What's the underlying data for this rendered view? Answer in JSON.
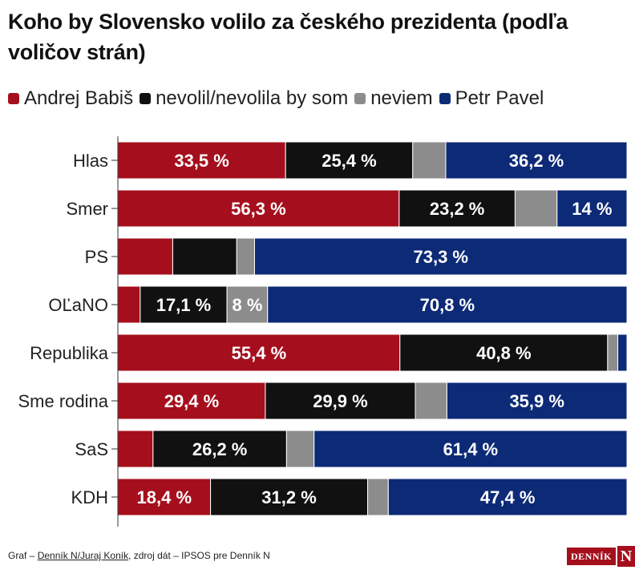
{
  "title": "Koho by Slovensko volilo za českého prezidenta (podľa voličov strán)",
  "legend": [
    {
      "label": "Andrej Babiš",
      "color": "#a50f1d"
    },
    {
      "label": "nevolil/nevolila by som",
      "color": "#111111"
    },
    {
      "label": "neviem",
      "color": "#8c8c8c"
    },
    {
      "label": "Petr Pavel",
      "color": "#0d2a77"
    }
  ],
  "chart_data": {
    "type": "bar",
    "orientation": "horizontal",
    "stacked": true,
    "percent": true,
    "categories": [
      "Hlas",
      "Smer",
      "PS",
      "OĽaNO",
      "Republika",
      "Sme rodina",
      "SaS",
      "KDH"
    ],
    "series": [
      {
        "name": "Andrej Babiš",
        "color": "#a50f1d",
        "values": [
          33.5,
          56.3,
          10.8,
          4.4,
          55.4,
          29.4,
          6.9,
          18.4
        ]
      },
      {
        "name": "nevolil/nevolila by som",
        "color": "#111111",
        "values": [
          25.4,
          23.2,
          12.6,
          17.1,
          40.8,
          29.9,
          26.2,
          31.2
        ]
      },
      {
        "name": "neviem",
        "color": "#8c8c8c",
        "values": [
          6.6,
          8.4,
          3.5,
          8.0,
          2.0,
          6.3,
          5.4,
          4.1
        ]
      },
      {
        "name": "Petr Pavel",
        "color": "#0d2a77",
        "values": [
          36.2,
          14.0,
          73.3,
          70.8,
          1.8,
          35.9,
          61.4,
          47.4
        ]
      }
    ],
    "labels": [
      [
        "33,5 %",
        "25,4 %",
        "",
        "36,2 %"
      ],
      [
        "56,3 %",
        "23,2 %",
        "",
        "14 %"
      ],
      [
        "",
        "",
        "",
        "73,3 %"
      ],
      [
        "",
        "17,1 %",
        "8 %",
        "70,8 %"
      ],
      [
        "55,4 %",
        "40,8 %",
        "",
        ""
      ],
      [
        "29,4 %",
        "29,9 %",
        "",
        "35,9 %"
      ],
      [
        "",
        "26,2 %",
        "",
        "61,4 %"
      ],
      [
        "18,4 %",
        "31,2 %",
        "",
        "47,4 %"
      ]
    ],
    "xlim": [
      0,
      100
    ],
    "grid": false
  },
  "footer": {
    "prefix": "Graf – ",
    "author": "Denník N/Juraj Koník",
    "suffix": ", zdroj dát – IPSOS pre Denník N"
  },
  "logo": {
    "text": "DENNÍK",
    "mark": "N"
  }
}
